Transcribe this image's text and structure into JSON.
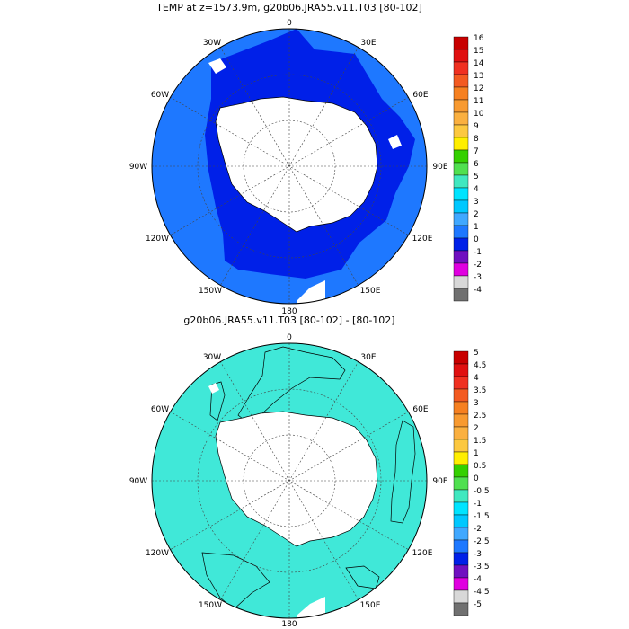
{
  "panels": [
    {
      "title": "TEMP at z=1573.9m, g20b06.JRA55.v11.T03 [80-102]",
      "lon_labels": {
        "top": "0",
        "upper_right": "30E",
        "right_upper": "60E",
        "right": "90E",
        "lower_right": "120E",
        "bottom_right": "150E",
        "bottom": "180",
        "bottom_left": "150W",
        "lower_left": "120W",
        "left": "90W",
        "left_upper": "60W",
        "upper_left": "30W"
      },
      "colorbar": {
        "labels": [
          "16",
          "15",
          "14",
          "13",
          "12",
          "11",
          "10",
          "9",
          "8",
          "7",
          "6",
          "5",
          "4",
          "3",
          "2",
          "1",
          "0",
          "-1",
          "-2",
          "-3",
          "-4"
        ],
        "colors": [
          "#c80000",
          "#e01010",
          "#f03020",
          "#f35a20",
          "#f68020",
          "#f89a30",
          "#fab040",
          "#fcc840",
          "#ffee00",
          "#34d000",
          "#50e050",
          "#40e8c0",
          "#00e4ff",
          "#00c8ff",
          "#40a8ff",
          "#1e78ff",
          "#0020e8",
          "#7010c0",
          "#e000e0",
          "#d8d8d8",
          "#707070"
        ]
      },
      "field_colors": {
        "ocean_outer": "#1e78ff",
        "ocean_inner": "#0020e8",
        "land": "#ffffff"
      }
    },
    {
      "title": "g20b06.JRA55.v11.T03 [80-102] -  [80-102]",
      "lon_labels": {
        "top": "0",
        "upper_right": "30E",
        "right_upper": "60E",
        "right": "90E",
        "lower_right": "120E",
        "bottom_right": "150E",
        "bottom": "180",
        "bottom_left": "150W",
        "lower_left": "120W",
        "left": "90W",
        "left_upper": "60W",
        "upper_left": "30W"
      },
      "colorbar": {
        "labels": [
          "5",
          "4.5",
          "4",
          "3.5",
          "3",
          "2.5",
          "2",
          "1.5",
          "1",
          "0.5",
          "0",
          "-0.5",
          "-1",
          "-1.5",
          "-2",
          "-2.5",
          "-3",
          "-3.5",
          "-4",
          "-4.5",
          "-5"
        ],
        "colors": [
          "#c80000",
          "#e01010",
          "#f03020",
          "#f35a20",
          "#f68020",
          "#f89a30",
          "#fab040",
          "#fcc840",
          "#ffee00",
          "#34d000",
          "#50e050",
          "#40e8c0",
          "#00e4ff",
          "#00c8ff",
          "#40a8ff",
          "#1e78ff",
          "#0020e8",
          "#7010c0",
          "#e000e0",
          "#d8d8d8",
          "#707070"
        ]
      },
      "field_colors": {
        "ocean": "#40e8d8",
        "positive_patch": "#50e050",
        "land": "#ffffff"
      }
    }
  ]
}
